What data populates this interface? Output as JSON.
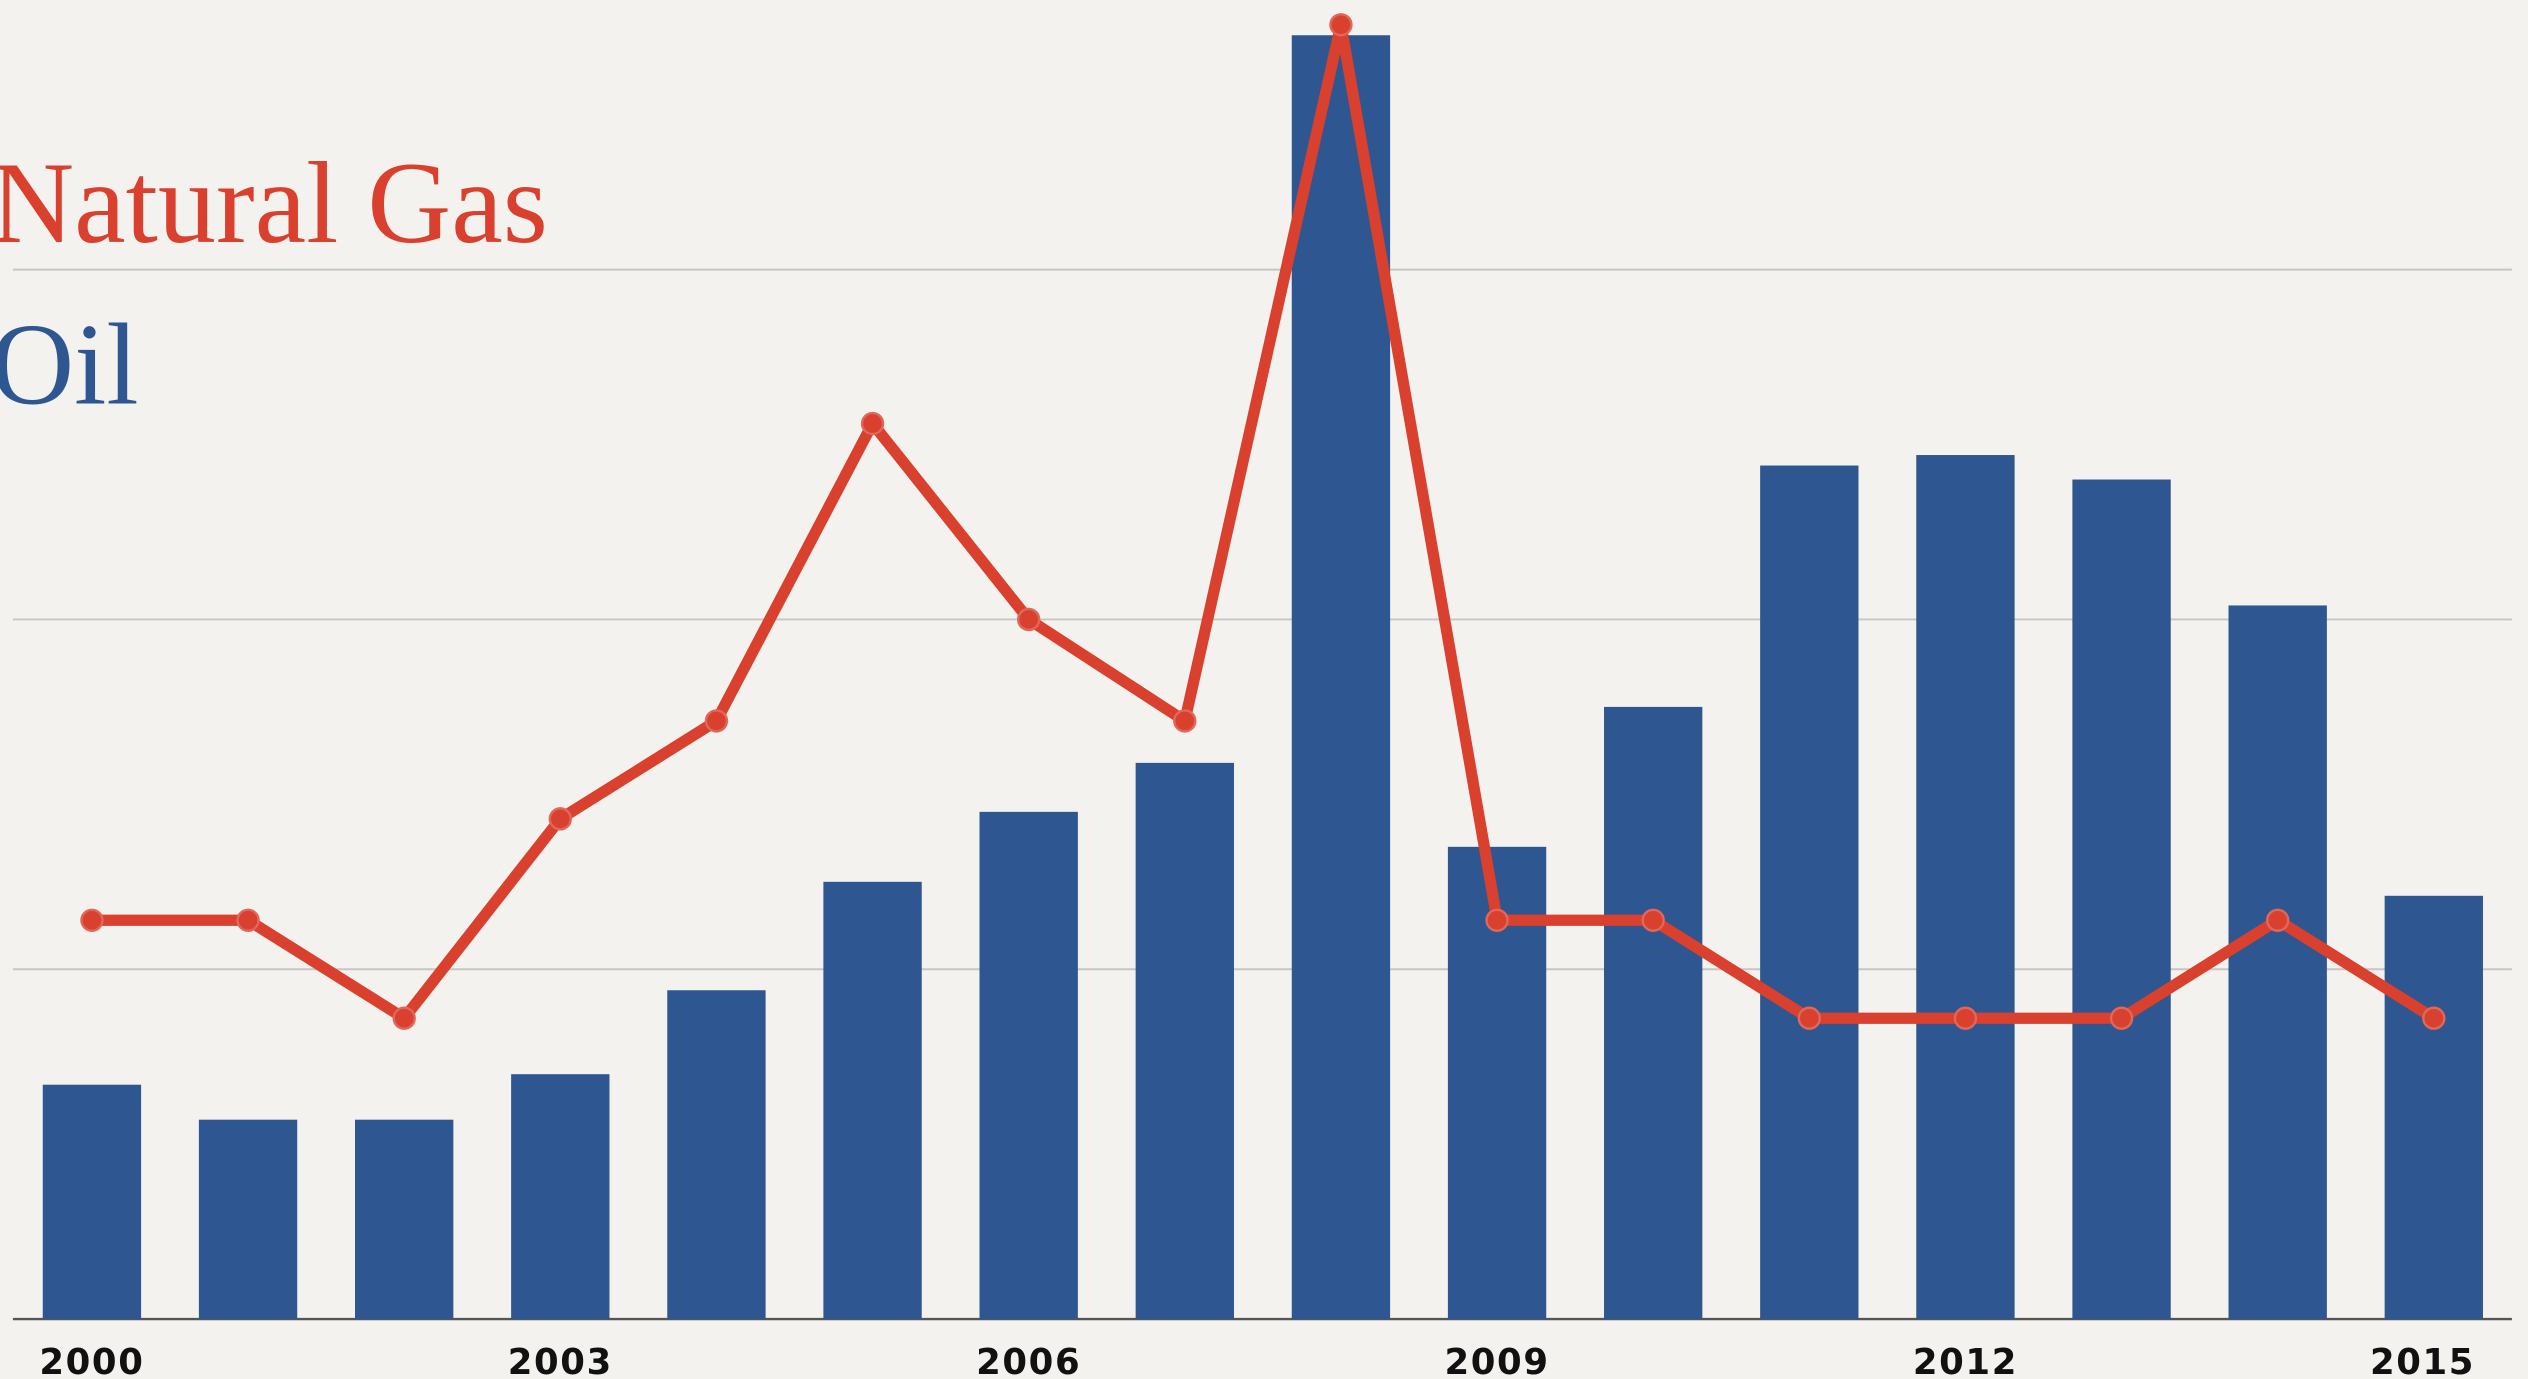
{
  "chart_data": {
    "type": "bar_line",
    "categories": [
      "2000",
      null,
      null,
      "2003",
      null,
      null,
      "2006",
      null,
      null,
      "2009",
      null,
      null,
      "2012",
      null,
      null,
      "2015"
    ],
    "series": [
      {
        "name": "Natural Gas",
        "color": "#d9402e",
        "kind": "line",
        "values": [
          1.14,
          1.14,
          0.86,
          1.43,
          1.71,
          2.56,
          2.0,
          1.71,
          3.7,
          1.14,
          1.14,
          0.86,
          0.86,
          0.86,
          1.14,
          0.86
        ]
      },
      {
        "name": "Oil",
        "color": "#2e5690",
        "kind": "bar",
        "values": [
          0.67,
          0.57,
          0.57,
          0.7,
          0.94,
          1.25,
          1.45,
          1.59,
          3.67,
          1.35,
          1.75,
          2.44,
          2.47,
          2.4,
          2.04,
          1.21
        ]
      }
    ],
    "ylim": [
      0,
      3.77
    ],
    "yticks": [
      0,
      1,
      2,
      3
    ],
    "grid": true
  }
}
